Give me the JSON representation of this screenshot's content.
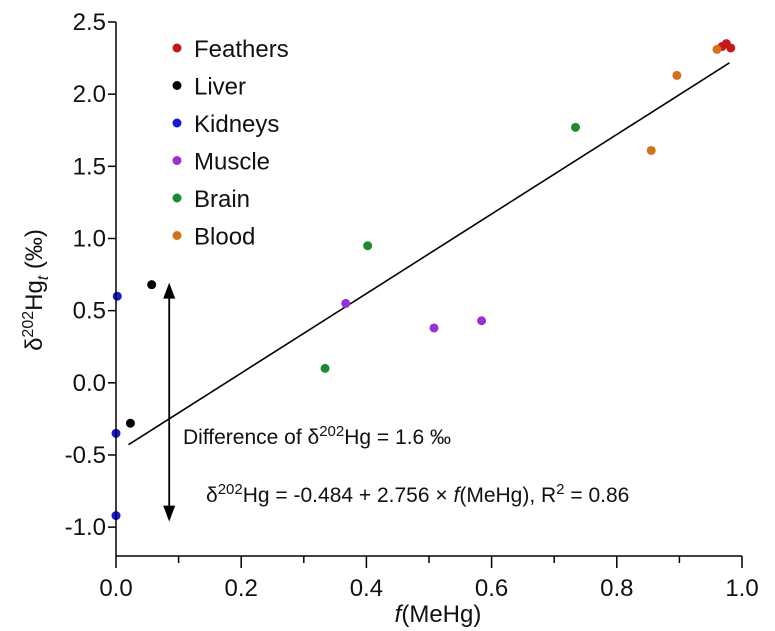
{
  "chart_data": {
    "type": "scatter",
    "xlabel": {
      "italic": "f",
      "rest": "(MeHg)"
    },
    "ylabel": {
      "delta": "δ",
      "sup": "202",
      "base": "Hg",
      "sub": "t",
      "unit": " (‰)"
    },
    "xlim": [
      0.0,
      1.0
    ],
    "ylim": [
      -1.2,
      2.5
    ],
    "xticks": [
      "0.0",
      "0.2",
      "0.4",
      "0.6",
      "0.8",
      "1.0"
    ],
    "xtick_values": [
      0.0,
      0.2,
      0.4,
      0.6,
      0.8,
      1.0
    ],
    "xminor_values": [
      0.1,
      0.3,
      0.5,
      0.7,
      0.9
    ],
    "yticks": [
      "-1.0",
      "-0.5",
      "0.0",
      "0.5",
      "1.0",
      "1.5",
      "2.0",
      "2.5"
    ],
    "ytick_values": [
      -1.0,
      -0.5,
      0.0,
      0.5,
      1.0,
      1.5,
      2.0,
      2.5
    ],
    "grid": false,
    "legend_position": "top-left",
    "series": [
      {
        "name": "Feathers",
        "color": "#c8161d",
        "points": [
          [
            0.975,
            2.35
          ],
          [
            0.982,
            2.32
          ],
          [
            0.968,
            2.33
          ]
        ]
      },
      {
        "name": "Liver",
        "color": "#000000",
        "points": [
          [
            0.057,
            0.68
          ],
          [
            0.023,
            -0.28
          ]
        ]
      },
      {
        "name": "Kidneys",
        "color": "#1818d8",
        "points": [
          [
            0.002,
            0.6
          ],
          [
            0.0,
            -0.35
          ],
          [
            0.0,
            -0.92
          ]
        ]
      },
      {
        "name": "Muscle",
        "color": "#9a2fd6",
        "points": [
          [
            0.367,
            0.55
          ],
          [
            0.508,
            0.38
          ],
          [
            0.584,
            0.43
          ]
        ]
      },
      {
        "name": "Brain",
        "color": "#1e8a30",
        "points": [
          [
            0.402,
            0.95
          ],
          [
            0.334,
            0.1
          ],
          [
            0.734,
            1.77
          ]
        ]
      },
      {
        "name": "Blood",
        "color": "#d2731c",
        "points": [
          [
            0.855,
            1.61
          ],
          [
            0.896,
            2.13
          ],
          [
            0.96,
            2.31
          ]
        ]
      }
    ],
    "fit_line": {
      "intercept": -0.484,
      "slope": 2.756,
      "x_range": [
        0.02,
        0.98
      ]
    },
    "arrow": {
      "x": 0.085,
      "y_from": 0.68,
      "y_to": -0.92
    },
    "annotations": {
      "difference": {
        "prefix": "Difference of δ",
        "sup": "202",
        "suffix": "Hg = 1.6 ‰"
      },
      "equation": {
        "part1": "δ",
        "sup1": "202",
        "part2": "Hg = -0.484 + 2.756 × ",
        "italic": "f",
        "part3": "(MeHg), R",
        "sup2": "2",
        "part4": " = 0.86"
      }
    }
  }
}
